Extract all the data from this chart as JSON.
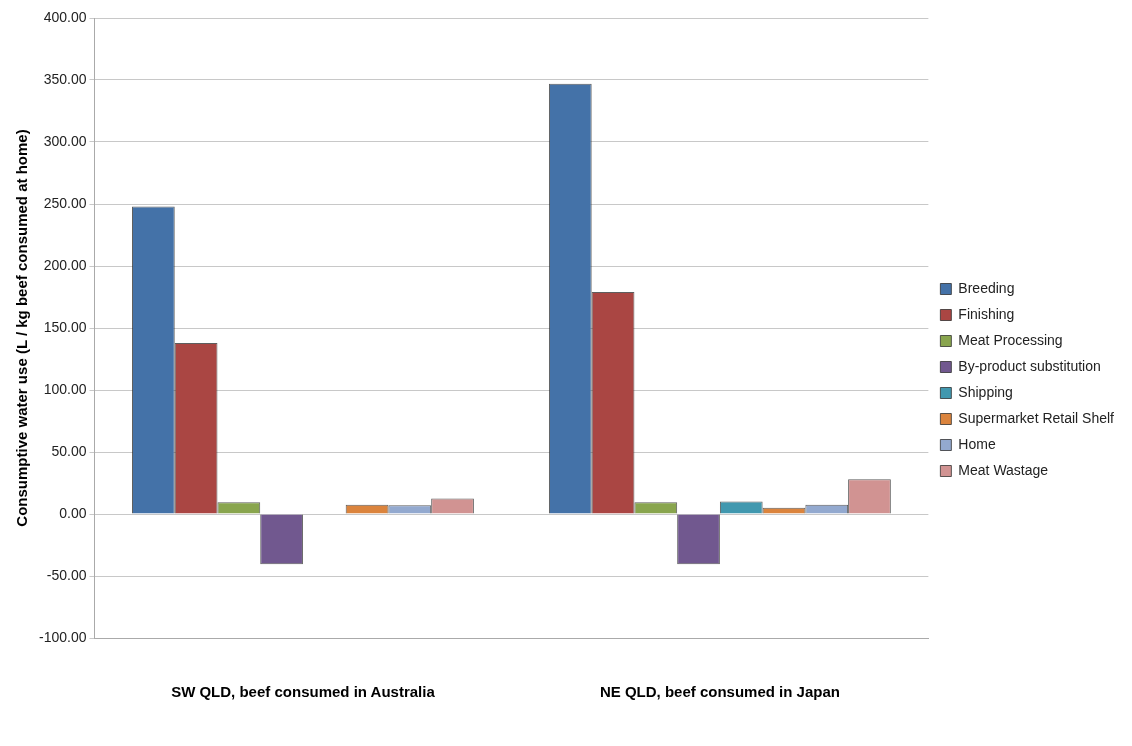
{
  "chart_data": {
    "type": "bar",
    "ylabel": "Consumptive water use (L / kg beef consumed at home)",
    "categories": [
      "SW QLD, beef consumed in Australia",
      "NE QLD, beef consumed in Japan"
    ],
    "series": [
      {
        "name": "Breeding",
        "color": "#4472a8",
        "values": [
          248,
          347
        ]
      },
      {
        "name": "Finishing",
        "color": "#aa4643",
        "values": [
          138,
          179
        ]
      },
      {
        "name": "Meat Processing",
        "color": "#89a54e",
        "values": [
          9.5,
          9.5
        ]
      },
      {
        "name": "By-product substitution",
        "color": "#71588f",
        "values": [
          -40.5,
          -40.5
        ]
      },
      {
        "name": "Shipping",
        "color": "#4198af",
        "values": [
          0,
          10
        ]
      },
      {
        "name": "Supermarket Retail Shelf",
        "color": "#db843d",
        "values": [
          7.5,
          5
        ]
      },
      {
        "name": "Home",
        "color": "#93a9cf",
        "values": [
          7,
          7.5
        ]
      },
      {
        "name": "Meat Wastage",
        "color": "#d19392",
        "values": [
          12.5,
          28
        ]
      }
    ],
    "ylim": [
      -100,
      400
    ],
    "yticks": [
      {
        "value": -100,
        "label": "-100.00"
      },
      {
        "value": -50,
        "label": "-50.00"
      },
      {
        "value": 0,
        "label": "0.00"
      },
      {
        "value": 50,
        "label": "50.00"
      },
      {
        "value": 100,
        "label": "100.00"
      },
      {
        "value": 150,
        "label": "150.00"
      },
      {
        "value": 200,
        "label": "200.00"
      },
      {
        "value": 250,
        "label": "250.00"
      },
      {
        "value": 300,
        "label": "300.00"
      },
      {
        "value": 350,
        "label": "350.00"
      },
      {
        "value": 400,
        "label": "400.00"
      }
    ],
    "grid": "y",
    "legend": "right"
  }
}
